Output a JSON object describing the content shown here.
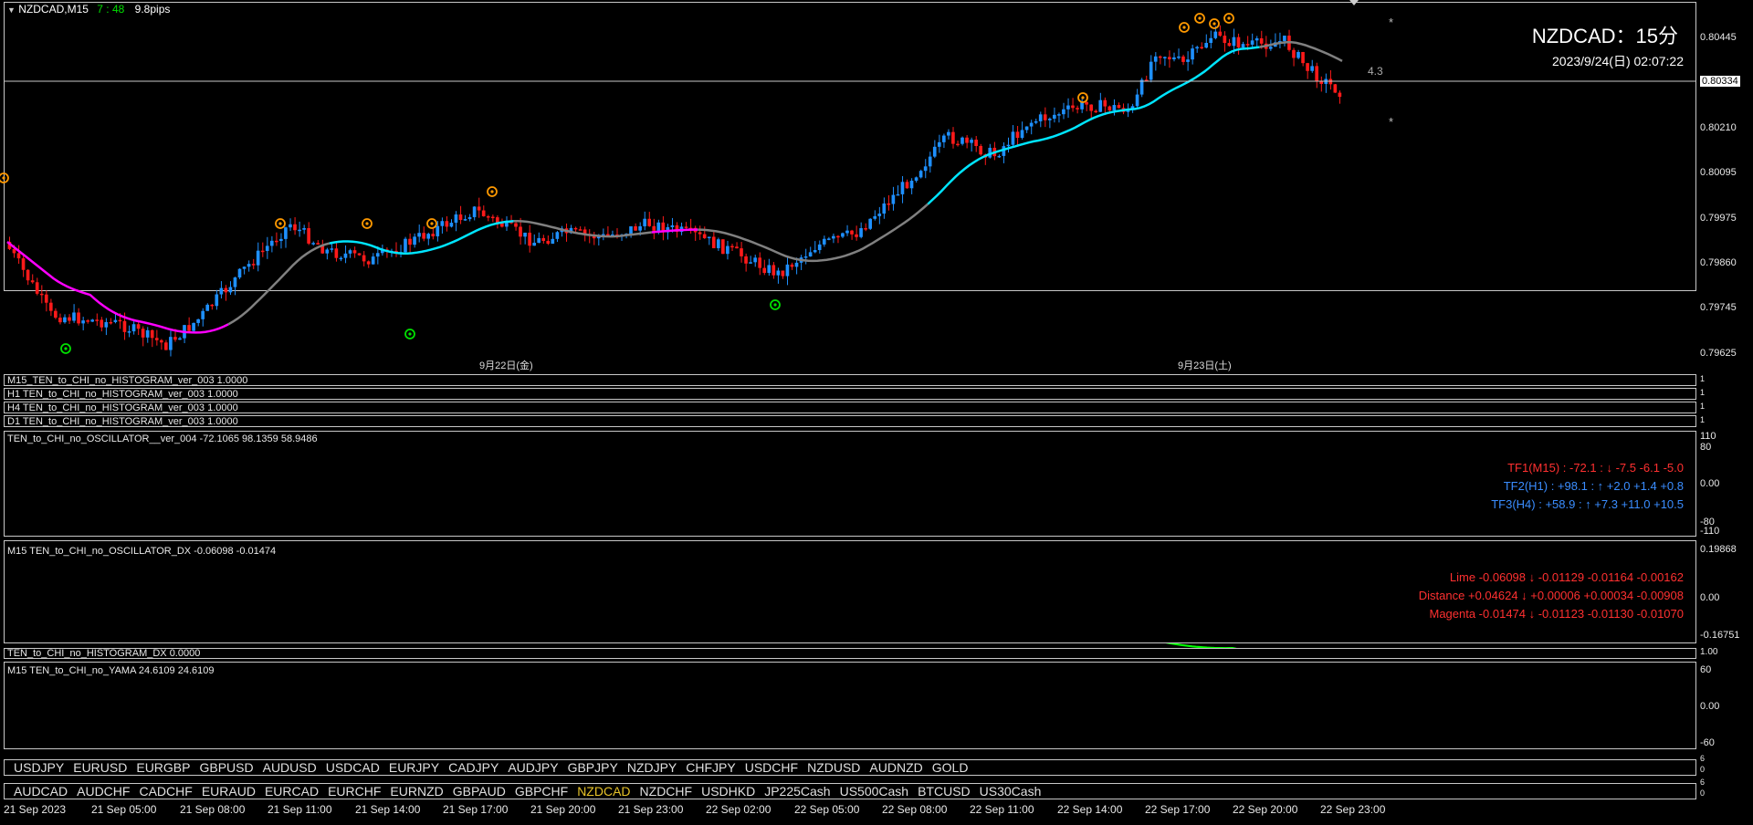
{
  "chart_header": {
    "symbol_tf": "NZDCAD,M15",
    "timer": "7 : 48",
    "spread": "9.8pips"
  },
  "overlay": {
    "title": "NZDCAD：15分",
    "datetime": "2023/9/24(日) 02:07:22",
    "label_43": "4.3"
  },
  "price_axis": {
    "ticks": [
      "0.80445",
      "0.80334",
      "0.80210",
      "0.80095",
      "0.79975",
      "0.79860",
      "0.79745",
      "0.79625"
    ],
    "current_price": "0.80334"
  },
  "date_labels": [
    "9月22日(金)",
    "9月23日(土)"
  ],
  "histograms": [
    {
      "label": "M15_TEN_to_CHI_no_HISTOGRAM_ver_003 1.0000",
      "value": "1"
    },
    {
      "label": "H1 TEN_to_CHI_no_HISTOGRAM_ver_003 1.0000",
      "value": "1"
    },
    {
      "label": "H4 TEN_to_CHI_no_HISTOGRAM_ver_003 1.0000",
      "value": "1"
    },
    {
      "label": "D1 TEN_to_CHI_no_HISTOGRAM_ver_003 1.0000",
      "value": "1"
    }
  ],
  "hist_axis_small": [
    "0",
    "1"
  ],
  "oscillator": {
    "title": "TEN_to_CHI_no_OSCILLATOR__ver_004 -72.1065 98.1359 58.9486",
    "axis": [
      "110",
      "80",
      "0.00",
      "-80",
      "-110"
    ],
    "tf1": "TF1(M15) : -72.1 : ↓ -7.5 -6.1 -5.0",
    "tf2": "TF2(H1) : +98.1 : ↑ +2.0 +1.4 +0.8",
    "tf3": "TF3(H4) : +58.9 : ↑ +7.3 +11.0 +10.5"
  },
  "dx": {
    "title": "M15 TEN_to_CHI_no_OSCILLATOR_DX -0.06098 -0.01474",
    "axis": [
      "0.19868",
      "0.00",
      "-0.16751"
    ],
    "lime": "Lime -0.06098 ↓ -0.01129 -0.01164 -0.00162",
    "distance": "Distance +0.04624 ↓ +0.00006 +0.00034 -0.00908",
    "magenta": "Magenta -0.01474 ↓ -0.01123 -0.01130 -0.01070"
  },
  "hist_dx": {
    "label": "TEN_to_CHI_no_HISTOGRAM_DX 0.0000",
    "axis": "1.00"
  },
  "yama": {
    "title": "M15  TEN_to_CHI_no_YAMA  24.6109 24.6109",
    "axis": [
      "60",
      "0.00",
      "-60"
    ]
  },
  "symbols_row1": [
    "USDJPY",
    "EURUSD",
    "EURGBP",
    "GBPUSD",
    "AUDUSD",
    "USDCAD",
    "EURJPY",
    "CADJPY",
    "AUDJPY",
    "GBPJPY",
    "NZDJPY",
    "CHFJPY",
    "USDCHF",
    "NZDUSD",
    "AUDNZD",
    "GOLD"
  ],
  "symbols_row2": [
    "AUDCAD",
    "AUDCHF",
    "CADCHF",
    "EURAUD",
    "EURCAD",
    "EURCHF",
    "EURNZD",
    "GBPAUD",
    "GBPCHF",
    "NZDCAD",
    "NZDCHF",
    "USDHKD",
    "JP225Cash",
    "US500Cash",
    "BTCUSD",
    "US30Cash"
  ],
  "symbol_selected": "NZDCAD",
  "symbols_axis": [
    "6",
    "0"
  ],
  "time_axis": [
    "21 Sep 2023",
    "21 Sep 05:00",
    "21 Sep 08:00",
    "21 Sep 11:00",
    "21 Sep 14:00",
    "21 Sep 17:00",
    "21 Sep 20:00",
    "21 Sep 23:00",
    "22 Sep 02:00",
    "22 Sep 05:00",
    "22 Sep 08:00",
    "22 Sep 11:00",
    "22 Sep 14:00",
    "22 Sep 17:00",
    "22 Sep 20:00",
    "22 Sep 23:00"
  ],
  "colors": {
    "bull": "#1e90ff",
    "bear": "#ff1a1a",
    "ma_magenta": "#ff00ff",
    "ma_cyan": "#00e5ff",
    "ma_gray": "#808080",
    "lime": "#00ff00",
    "selected_symbol": "#e6c229"
  }
}
